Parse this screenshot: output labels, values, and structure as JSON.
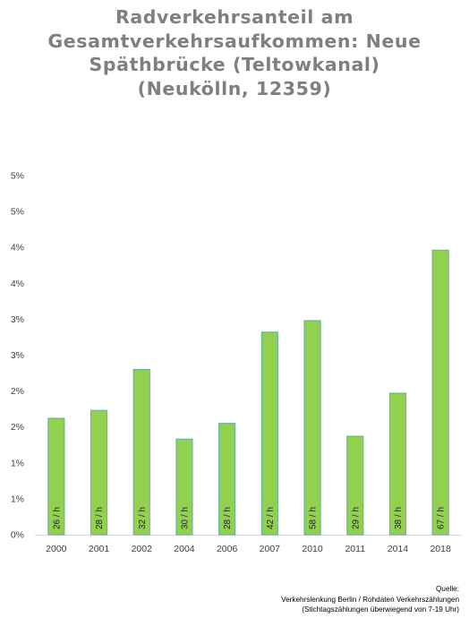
{
  "chart_data": {
    "type": "bar",
    "title_lines": [
      "Radverkehrsanteil am",
      "Gesamtverkehrsaufkommen: Neue",
      "Späthbrücke (Teltowkanal)",
      "(Neukölln, 12359)"
    ],
    "categories": [
      "2000",
      "2001",
      "2002",
      "2004",
      "2006",
      "2007",
      "2010",
      "2011",
      "2014",
      "2018"
    ],
    "values": [
      1.62,
      1.73,
      2.3,
      1.33,
      1.55,
      2.82,
      2.98,
      1.37,
      1.97,
      3.96
    ],
    "bar_labels": [
      "26 / h",
      "28 / h",
      "32 / h",
      "30 / h",
      "28 / h",
      "42 / h",
      "58 / h",
      "29 / h",
      "38 / h",
      "67 / h"
    ],
    "y_tick_labels": [
      "0%",
      "1%",
      "1%",
      "2%",
      "2%",
      "3%",
      "3%",
      "4%",
      "4%",
      "5%",
      "5%"
    ],
    "ylim": [
      0,
      5
    ],
    "grid": false,
    "legend": "none",
    "bar_color": "#92d050",
    "bar_edge_color": "#6fb3a0",
    "tick_label_color": "#404040"
  },
  "source": {
    "lines": [
      "Quelle:",
      "Verkehrslenkung Berlin / Rohdaten Verkehrszählungen",
      "(Stichtagszählungen überwiegend von 7-19 Uhr)"
    ]
  }
}
